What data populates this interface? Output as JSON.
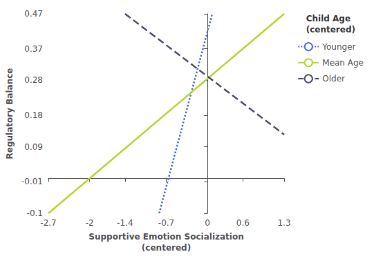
{
  "chart_data": {
    "type": "line",
    "xlabel": "Supportive Emotion Socialization\n(centered)",
    "ylabel": "Regulatory Balance",
    "xlim": [
      -2.7,
      1.3
    ],
    "ylim": [
      -0.1,
      0.47
    ],
    "xticks": [
      -2.7,
      -2.0,
      -1.4,
      -0.7,
      0.0,
      0.6,
      1.3
    ],
    "yticks": [
      -0.1,
      -0.01,
      0.09,
      0.18,
      0.28,
      0.37,
      0.47
    ],
    "legend_title": "Child Age\n(centered)",
    "legend": "upper right",
    "grid": false,
    "series": [
      {
        "name": "Younger",
        "x": [
          -0.82,
          0.08
        ],
        "values": [
          -0.1,
          0.47
        ],
        "line_style": "dotted"
      },
      {
        "name": "Mean Age",
        "x": [
          -2.7,
          1.3
        ],
        "values": [
          -0.1,
          0.47
        ],
        "line_style": "solid"
      },
      {
        "name": "Older",
        "x": [
          -1.4,
          1.3
        ],
        "values": [
          0.47,
          0.125
        ],
        "line_style": "dashed"
      }
    ]
  }
}
